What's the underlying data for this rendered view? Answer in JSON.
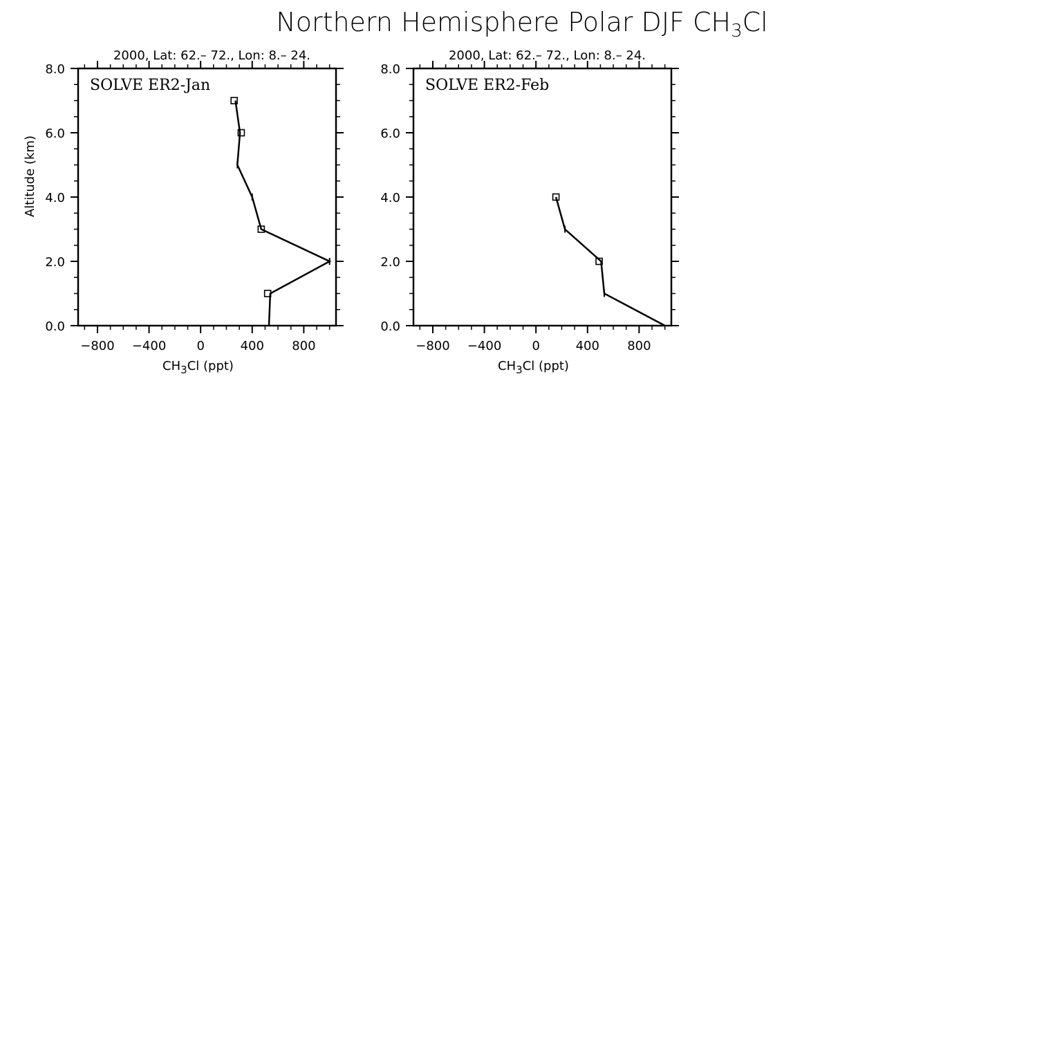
{
  "figure": {
    "title_prefix": "Northern Hemisphere Polar DJF CH",
    "title_sub": "3",
    "title_suffix": "Cl"
  },
  "chart_data": [
    {
      "type": "line",
      "panel_label": "SOLVE ER2-Jan",
      "top_label": "2000, Lat: 62.– 72., Lon: 8.– 24.",
      "xlabel_prefix": "CH",
      "xlabel_sub": "3",
      "xlabel_suffix": "Cl (ppt)",
      "ylabel": "Altitude (km)",
      "xlim": [
        -950,
        1050
      ],
      "ylim": [
        0,
        8
      ],
      "xticks": [
        -800,
        -400,
        0,
        400,
        800
      ],
      "xtick_labels": [
        "−800",
        "−400",
        "0",
        "400",
        "800"
      ],
      "yticks": [
        0,
        2,
        4,
        6,
        8
      ],
      "ytick_labels": [
        "0.0",
        "2.0",
        "4.0",
        "6.0",
        "8.0"
      ],
      "show_ylabel": true,
      "line": [
        {
          "x": 530,
          "y": 0.0
        },
        {
          "x": 540,
          "y": 1.0
        },
        {
          "x": 1000,
          "y": 2.0
        },
        {
          "x": 470,
          "y": 3.0
        },
        {
          "x": 400,
          "y": 4.0
        },
        {
          "x": 285,
          "y": 5.0
        },
        {
          "x": 305,
          "y": 6.0
        },
        {
          "x": 270,
          "y": 7.0
        }
      ],
      "markers": [
        {
          "x": 520,
          "y": 1.0
        },
        {
          "x": 470,
          "y": 3.0
        },
        {
          "x": 315,
          "y": 6.0
        },
        {
          "x": 260,
          "y": 7.0
        }
      ],
      "ticks": [
        {
          "x": 1000,
          "y": 2.0
        },
        {
          "x": 400,
          "y": 4.0
        },
        {
          "x": 285,
          "y": 5.0
        }
      ]
    },
    {
      "type": "line",
      "panel_label": "SOLVE ER2-Feb",
      "top_label": "2000, Lat: 62.– 72., Lon: 8.– 24.",
      "xlabel_prefix": "CH",
      "xlabel_sub": "3",
      "xlabel_suffix": "Cl (ppt)",
      "ylabel": "",
      "xlim": [
        -950,
        1050
      ],
      "ylim": [
        0,
        8
      ],
      "xticks": [
        -800,
        -400,
        0,
        400,
        800
      ],
      "xtick_labels": [
        "−800",
        "−400",
        "0",
        "400",
        "800"
      ],
      "yticks": [
        0,
        2,
        4,
        6,
        8
      ],
      "ytick_labels": [
        "0.0",
        "2.0",
        "4.0",
        "6.0",
        "8.0"
      ],
      "show_ylabel": false,
      "line": [
        {
          "x": 1000,
          "y": 0.0
        },
        {
          "x": 530,
          "y": 1.0
        },
        {
          "x": 505,
          "y": 2.0
        },
        {
          "x": 225,
          "y": 3.0
        },
        {
          "x": 155,
          "y": 4.0
        }
      ],
      "markers": [
        {
          "x": 490,
          "y": 2.0
        },
        {
          "x": 155,
          "y": 4.0
        }
      ],
      "ticks": [
        {
          "x": 530,
          "y": 1.0
        },
        {
          "x": 225,
          "y": 3.0
        }
      ]
    }
  ]
}
